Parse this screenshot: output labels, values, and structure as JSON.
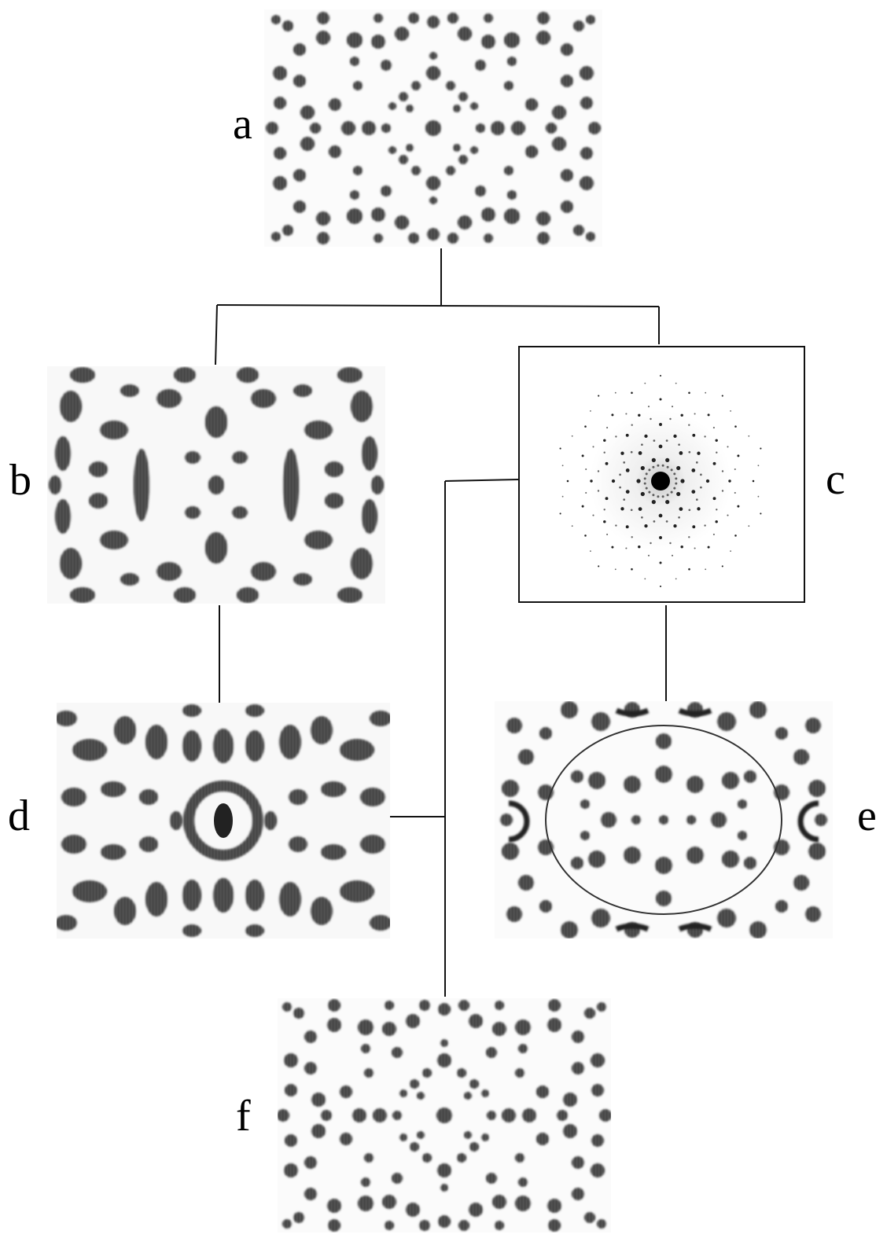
{
  "figure": {
    "panels": [
      {
        "id": "a",
        "label": "a",
        "kind": "real-space-dot-pattern"
      },
      {
        "id": "b",
        "label": "b",
        "kind": "blurred-pattern"
      },
      {
        "id": "c",
        "label": "c",
        "kind": "diffraction-pattern"
      },
      {
        "id": "d",
        "label": "d",
        "kind": "blurred-pattern"
      },
      {
        "id": "e",
        "label": "e",
        "kind": "reconstructed-pattern"
      },
      {
        "id": "f",
        "label": "f",
        "kind": "real-space-dot-pattern"
      }
    ],
    "links": [
      [
        "a",
        "b"
      ],
      [
        "a",
        "c"
      ],
      [
        "b",
        "d"
      ],
      [
        "c",
        "e"
      ],
      [
        "c",
        "f"
      ],
      [
        "d",
        "f"
      ]
    ],
    "colors": {
      "ink": "#111111",
      "paper": "#ffffff",
      "halo": "#cfcfcf"
    }
  }
}
